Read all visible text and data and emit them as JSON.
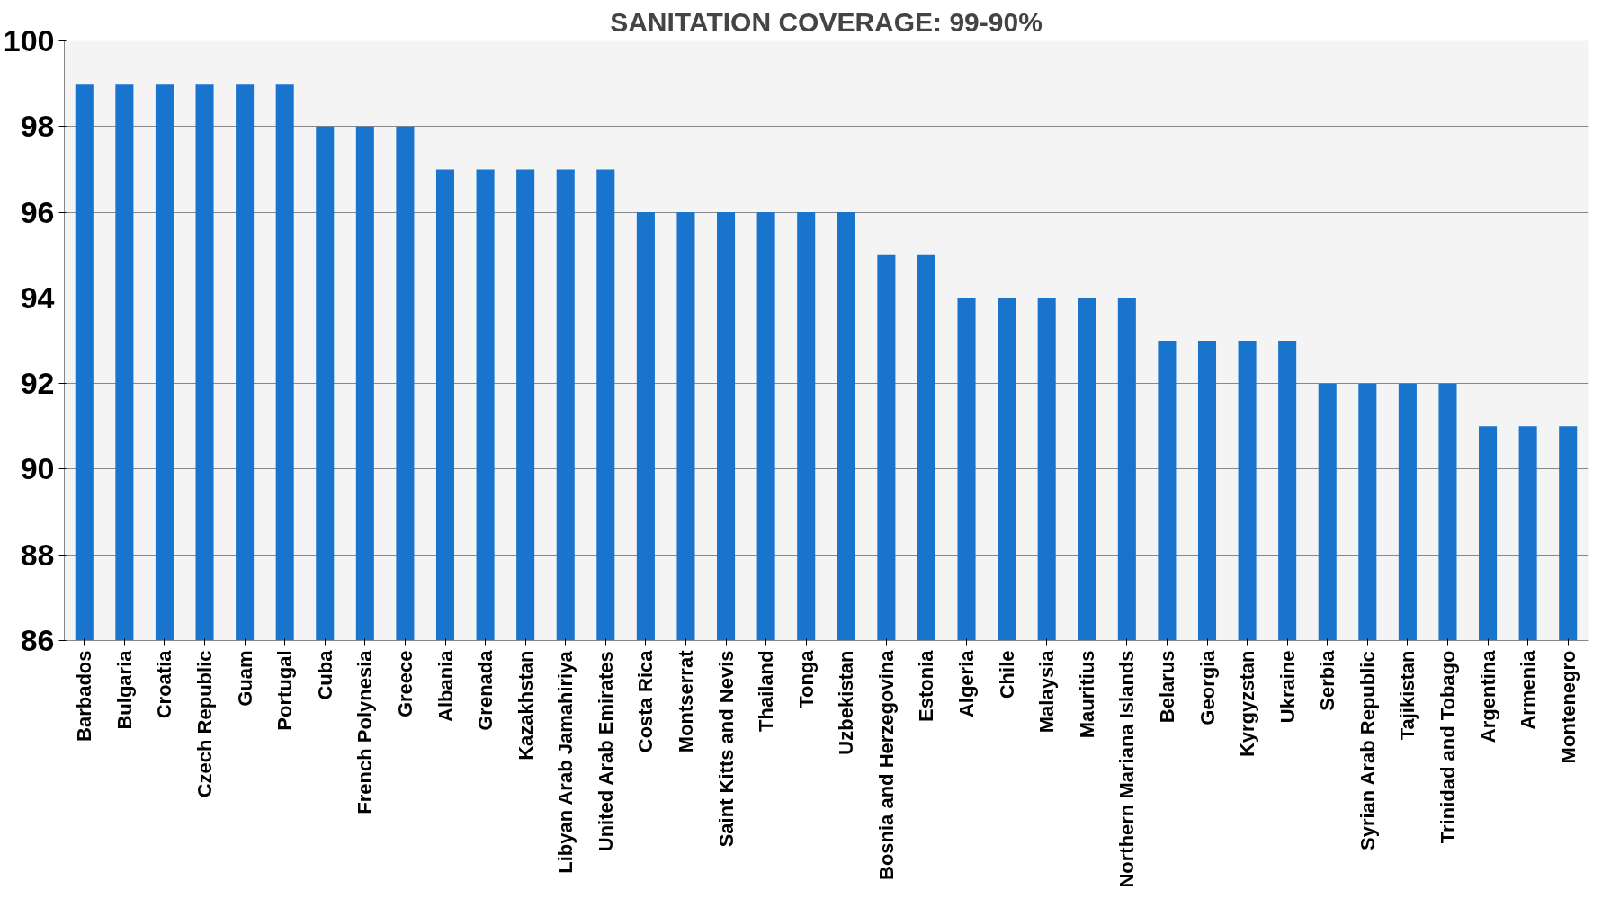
{
  "chart_data": {
    "type": "bar",
    "title": "SANITATION COVERAGE: 99-90%",
    "categories": [
      "Barbados",
      "Bulgaria",
      "Croatia",
      "Czech Republic",
      "Guam",
      "Portugal",
      "Cuba",
      "French Polynesia",
      "Greece",
      "Albania",
      "Grenada",
      "Kazakhstan",
      "Libyan Arab Jamahiriya",
      "United Arab Emirates",
      "Costa Rica",
      "Montserrat",
      "Saint Kitts and Nevis",
      "Thailand",
      "Tonga",
      "Uzbekistan",
      "Bosnia and Herzegovina",
      "Estonia",
      "Algeria",
      "Chile",
      "Malaysia",
      "Mauritius",
      "Northern Mariana Islands",
      "Belarus",
      "Georgia",
      "Kyrgyzstan",
      "Ukraine",
      "Serbia",
      "Syrian Arab Republic",
      "Tajikistan",
      "Trinidad and Tobago",
      "Argentina",
      "Armenia",
      "Montenegro"
    ],
    "values": [
      99,
      99,
      99,
      99,
      99,
      99,
      98,
      98,
      98,
      97,
      97,
      97,
      97,
      97,
      96,
      96,
      96,
      96,
      96,
      96,
      95,
      95,
      94,
      94,
      94,
      94,
      94,
      93,
      93,
      93,
      93,
      92,
      92,
      92,
      92,
      91,
      91,
      91
    ],
    "color": "#1874cd",
    "ylim": [
      86,
      100
    ],
    "yticks": [
      86,
      88,
      90,
      92,
      94,
      96,
      98,
      100
    ],
    "grid": "y"
  }
}
